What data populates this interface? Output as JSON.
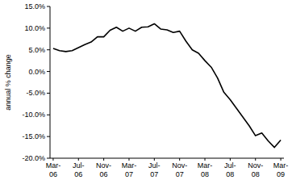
{
  "chart_data": {
    "type": "line",
    "y_label": "annual % change",
    "categories": [
      "Mar-06",
      null,
      null,
      null,
      "Jul-06",
      null,
      null,
      null,
      "Nov-06",
      null,
      null,
      null,
      "Mar-07",
      null,
      null,
      null,
      "Jul-07",
      null,
      null,
      null,
      "Nov-07",
      null,
      null,
      null,
      "Mar-08",
      null,
      null,
      null,
      "Jul-08",
      null,
      null,
      null,
      "Nov-08",
      null,
      null,
      null,
      "Mar-09"
    ],
    "values": [
      5.3,
      4.8,
      4.6,
      4.8,
      5.5,
      6.2,
      6.8,
      8.0,
      8.0,
      9.5,
      10.2,
      9.3,
      10.0,
      9.3,
      10.2,
      10.3,
      11.0,
      9.8,
      9.6,
      9.0,
      9.3,
      7.0,
      5.0,
      4.2,
      2.5,
      1.0,
      -1.5,
      -4.8,
      -6.5,
      -8.5,
      -10.5,
      -12.5,
      -14.8,
      -14.2,
      -16.0,
      -17.5,
      -15.8
    ],
    "color": "#000000",
    "ylim": [
      -20,
      15
    ],
    "yticks": [
      {
        "value": -20,
        "label": "-20.0%"
      },
      {
        "value": -15,
        "label": "-15.0%"
      },
      {
        "value": -10,
        "label": "-10.0%"
      },
      {
        "value": -5,
        "label": "-5.0%"
      },
      {
        "value": 0,
        "label": "0.0%"
      },
      {
        "value": 5,
        "label": "5.0%"
      },
      {
        "value": 10,
        "label": "10.0%"
      },
      {
        "value": 15,
        "label": "15.0%"
      }
    ],
    "grid": false
  }
}
